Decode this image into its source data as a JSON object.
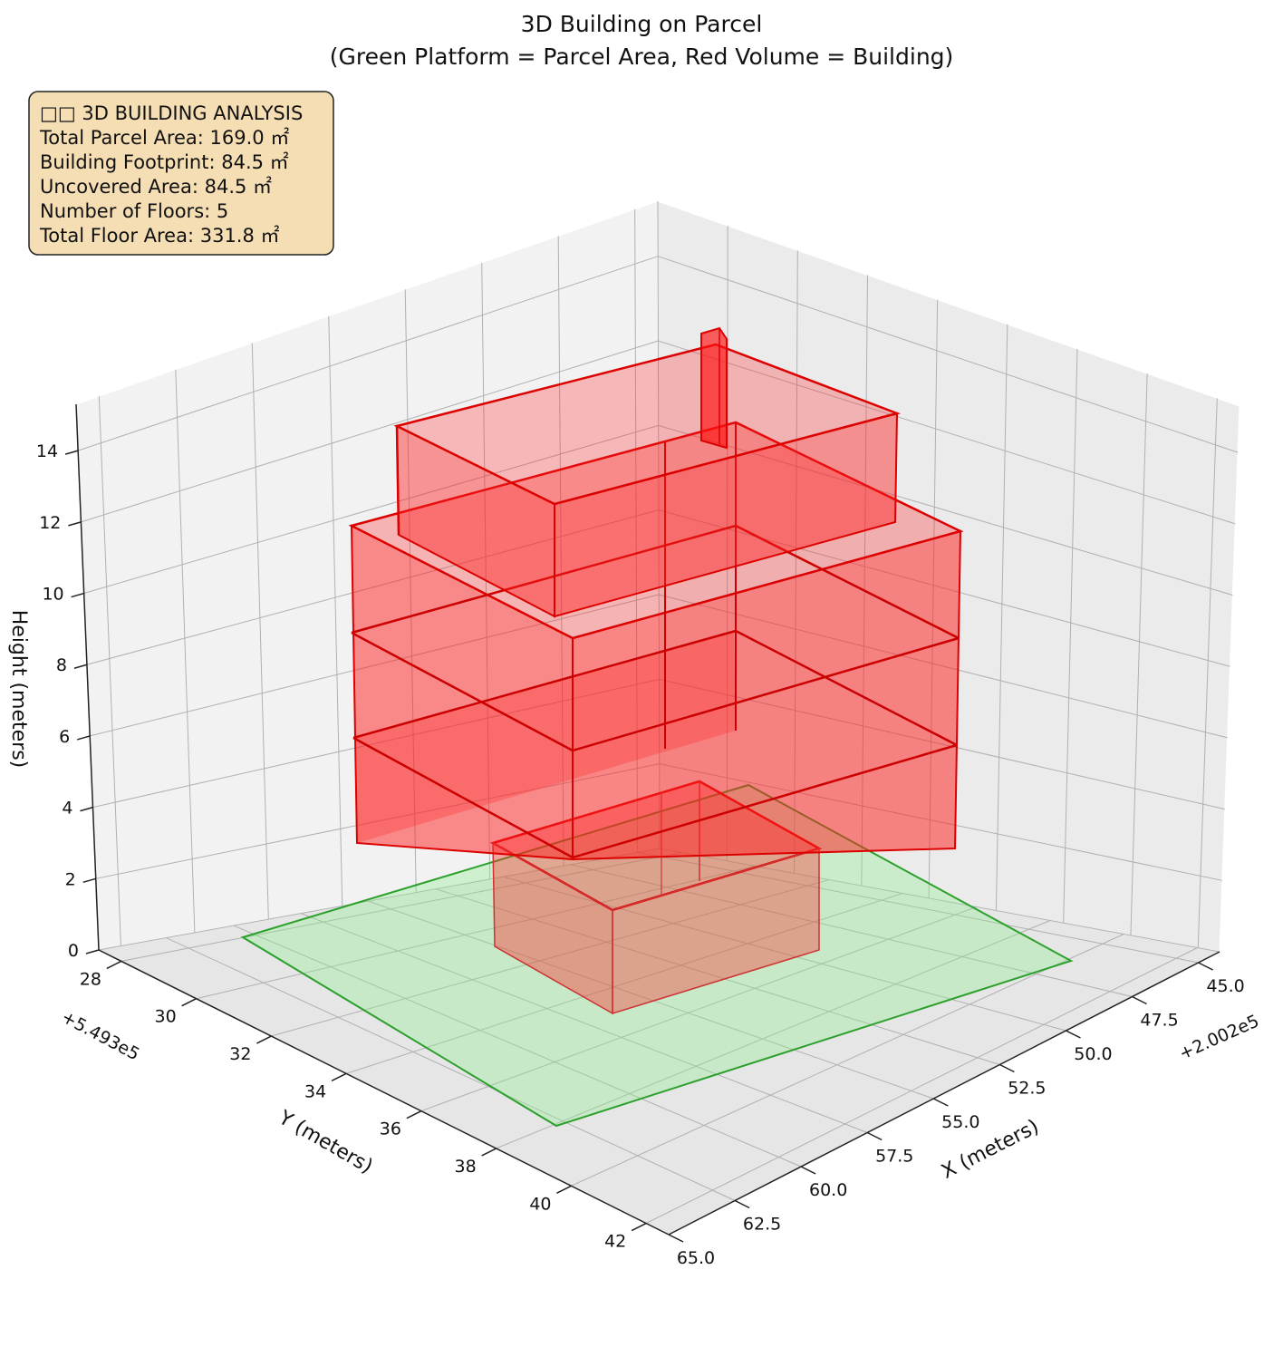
{
  "chart_data": {
    "type": "3d-bar",
    "title": "3D Building on Parcel",
    "subtitle": "(Green Platform = Parcel Area, Red Volume = Building)",
    "xlabel": "X (meters)",
    "ylabel": "Y (meters)",
    "zlabel": "Height (meters)",
    "x_ticks": [
      "45.0",
      "47.5",
      "50.0",
      "52.5",
      "55.0",
      "57.5",
      "60.0",
      "62.5",
      "65.0"
    ],
    "x_offset": "+2.002e5",
    "y_ticks": [
      "28",
      "30",
      "32",
      "34",
      "36",
      "38",
      "40",
      "42"
    ],
    "y_offset": "+5.493e5",
    "z_ticks": [
      "0",
      "2",
      "4",
      "6",
      "8",
      "10",
      "12",
      "14"
    ],
    "colors": {
      "building": "#ff0000",
      "parcel": "#2ca02c",
      "parcel_fill": "#90ee90",
      "info_box": "#f5deb3"
    },
    "info_box": {
      "heading": "□□ 3D BUILDING ANALYSIS",
      "lines": [
        "Total Parcel Area: 169.0 ㎡",
        "Building Footprint: 84.5 ㎡",
        "Uncovered Area: 84.5 ㎡",
        "Number of Floors: 5",
        "Total Floor Area: 331.8 ㎡"
      ]
    }
  }
}
